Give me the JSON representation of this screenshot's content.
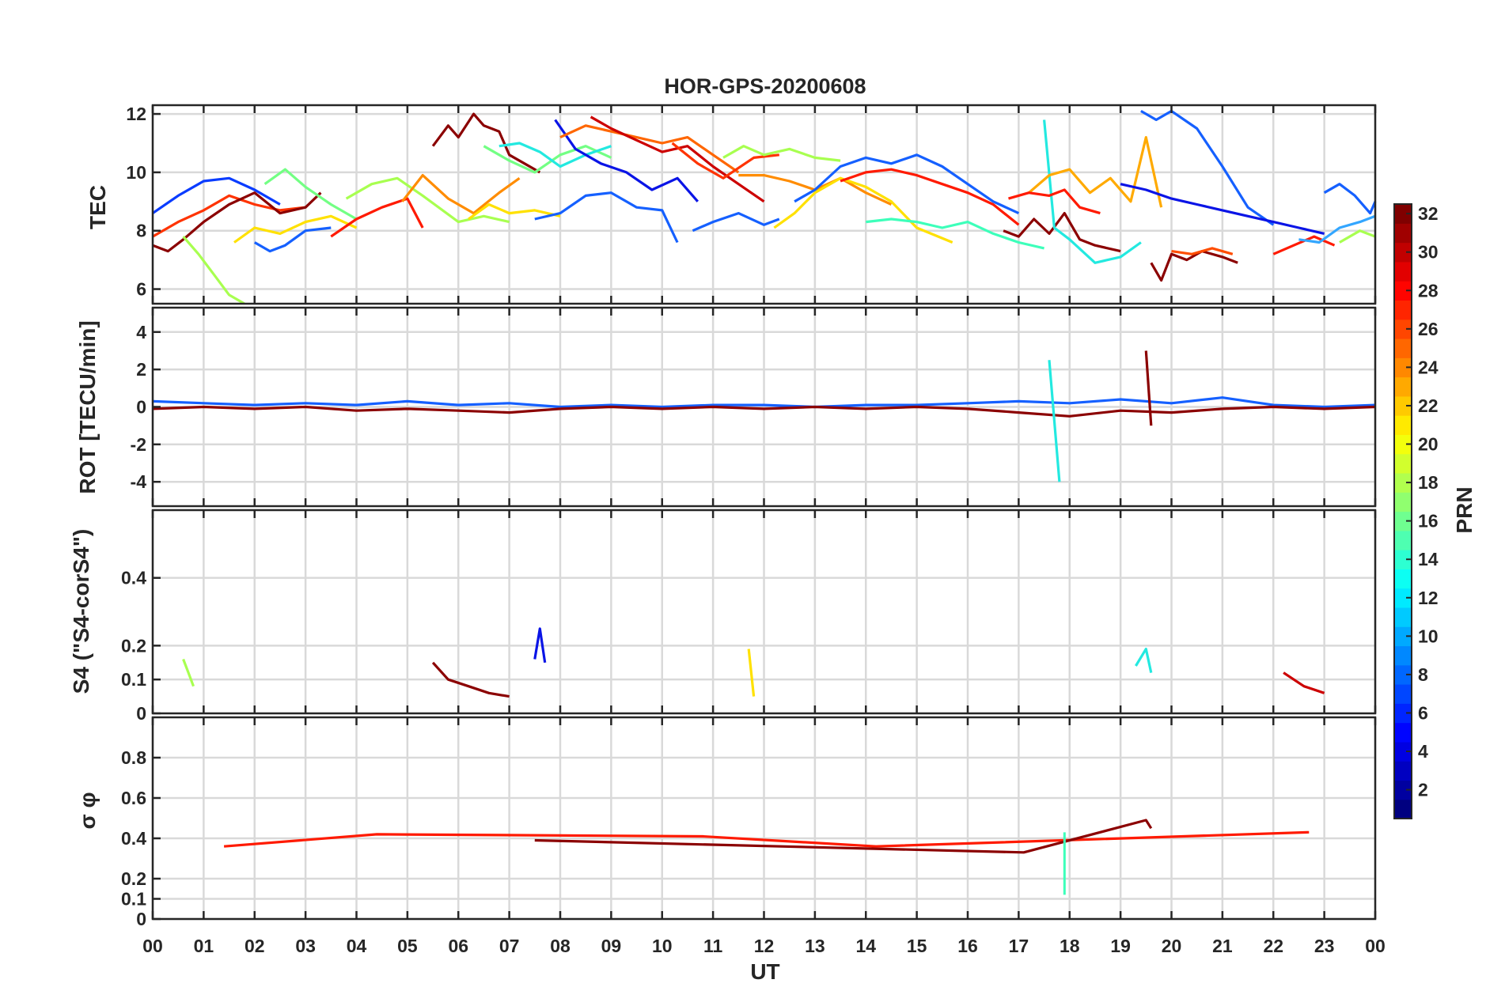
{
  "figure": {
    "title": "HOR-GPS-20200608",
    "xlabel": "UT",
    "x_ticks": [
      "00",
      "01",
      "02",
      "03",
      "04",
      "05",
      "06",
      "07",
      "08",
      "09",
      "10",
      "11",
      "12",
      "13",
      "14",
      "15",
      "16",
      "17",
      "18",
      "19",
      "20",
      "21",
      "22",
      "23",
      "00"
    ]
  },
  "colorbar": {
    "label": "PRN",
    "range": [
      1,
      32
    ],
    "ticks": [
      2,
      4,
      6,
      8,
      10,
      12,
      14,
      16,
      18,
      20,
      22,
      24,
      26,
      28,
      30,
      32
    ],
    "colormap": "jet"
  },
  "chart_data": [
    {
      "type": "line",
      "panel": "tec",
      "ylabel": "TEC",
      "ylim": [
        5.5,
        12.3
      ],
      "y_ticks": [
        6,
        8,
        10,
        12
      ],
      "xlim": [
        0,
        24
      ],
      "grid": true,
      "series": [
        {
          "color": "#0a3cff",
          "x": [
            0,
            0.5,
            1.0,
            1.5,
            2.0,
            2.5
          ],
          "y": [
            8.6,
            9.2,
            9.7,
            9.8,
            9.4,
            8.9
          ]
        },
        {
          "color": "#ff3300",
          "x": [
            0,
            0.5,
            1.0,
            1.5,
            2.0,
            2.5,
            3.0
          ],
          "y": [
            7.8,
            8.3,
            8.7,
            9.2,
            8.9,
            8.7,
            8.8
          ]
        },
        {
          "color": "#8b0000",
          "x": [
            0,
            0.3,
            0.6,
            1.0,
            1.5,
            2.0,
            2.5,
            3.0,
            3.3
          ],
          "y": [
            7.5,
            7.3,
            7.7,
            8.3,
            8.9,
            9.3,
            8.6,
            8.8,
            9.3
          ]
        },
        {
          "color": "#a8ff50",
          "x": [
            0.6,
            0.9,
            1.2,
            1.5,
            1.8
          ],
          "y": [
            7.8,
            7.2,
            6.5,
            5.8,
            5.5
          ]
        },
        {
          "color": "#1560ff",
          "x": [
            2.0,
            2.3,
            2.6,
            3.0,
            3.5
          ],
          "y": [
            7.6,
            7.3,
            7.5,
            8.0,
            8.1
          ]
        },
        {
          "color": "#ffe100",
          "x": [
            1.6,
            2.0,
            2.5,
            3.0,
            3.5,
            4.0
          ],
          "y": [
            7.6,
            8.1,
            7.9,
            8.3,
            8.5,
            8.1
          ]
        },
        {
          "color": "#73ff84",
          "x": [
            2.2,
            2.6,
            3.0,
            3.5,
            4.0
          ],
          "y": [
            9.6,
            10.1,
            9.5,
            8.9,
            8.4
          ]
        },
        {
          "color": "#ff1a00",
          "x": [
            3.5,
            4.0,
            4.5,
            5.0,
            5.3
          ],
          "y": [
            7.8,
            8.4,
            8.8,
            9.1,
            8.1
          ]
        },
        {
          "color": "#a8ff50",
          "x": [
            3.8,
            4.3,
            4.8,
            5.3,
            6.0,
            6.5,
            7.0
          ],
          "y": [
            9.1,
            9.6,
            9.8,
            9.2,
            8.3,
            8.5,
            8.3
          ]
        },
        {
          "color": "#ff8c00",
          "x": [
            4.9,
            5.3,
            5.8,
            6.3,
            6.8,
            7.2
          ],
          "y": [
            9.0,
            9.9,
            9.1,
            8.6,
            9.3,
            9.8
          ]
        },
        {
          "color": "#8b0000",
          "x": [
            5.5,
            5.8,
            6.0,
            6.3,
            6.5,
            6.8,
            7.0,
            7.3,
            7.6
          ],
          "y": [
            10.9,
            11.6,
            11.2,
            12.0,
            11.6,
            11.4,
            10.6,
            10.3,
            10.0
          ]
        },
        {
          "color": "#ffe100",
          "x": [
            6.2,
            6.6,
            7.0,
            7.5,
            8.0
          ],
          "y": [
            8.4,
            8.9,
            8.6,
            8.7,
            8.5
          ]
        },
        {
          "color": "#73ff84",
          "x": [
            6.5,
            7.0,
            7.5,
            8.0,
            8.5,
            9.0
          ],
          "y": [
            10.9,
            10.4,
            10.0,
            10.6,
            10.9,
            10.5
          ]
        },
        {
          "color": "#23e9e0",
          "x": [
            6.8,
            7.2,
            7.6,
            8.0,
            8.5,
            9.0
          ],
          "y": [
            10.9,
            11.0,
            10.7,
            10.2,
            10.6,
            10.9
          ]
        },
        {
          "color": "#1560ff",
          "x": [
            7.5,
            8.0,
            8.5,
            9.0,
            9.5,
            10.0,
            10.3
          ],
          "y": [
            8.4,
            8.6,
            9.2,
            9.3,
            8.8,
            8.7,
            7.6
          ]
        },
        {
          "color": "#0a14e6",
          "x": [
            7.9,
            8.3,
            8.8,
            9.3,
            9.8,
            10.3,
            10.7
          ],
          "y": [
            11.8,
            10.8,
            10.3,
            10.0,
            9.4,
            9.8,
            9.0
          ]
        },
        {
          "color": "#ff6600",
          "x": [
            8.0,
            8.5,
            9.0,
            9.5,
            10.0,
            10.5,
            11.0,
            11.5
          ],
          "y": [
            11.2,
            11.6,
            11.4,
            11.2,
            11.0,
            11.2,
            10.6,
            10.0
          ]
        },
        {
          "color": "#cc0000",
          "x": [
            8.6,
            9.0,
            9.5,
            10.0,
            10.5,
            11.0,
            11.5,
            12.0
          ],
          "y": [
            11.9,
            11.5,
            11.1,
            10.7,
            10.9,
            10.2,
            9.6,
            9.0
          ]
        },
        {
          "color": "#ff3300",
          "x": [
            10.2,
            10.7,
            11.2,
            11.8,
            12.3
          ],
          "y": [
            11.0,
            10.3,
            9.8,
            10.5,
            10.6
          ]
        },
        {
          "color": "#1560ff",
          "x": [
            10.6,
            11.0,
            11.5,
            12.0,
            12.3
          ],
          "y": [
            8.0,
            8.3,
            8.6,
            8.2,
            8.4
          ]
        },
        {
          "color": "#a8ff50",
          "x": [
            11.2,
            11.6,
            12.0,
            12.5,
            13.0,
            13.5
          ],
          "y": [
            10.5,
            10.9,
            10.6,
            10.8,
            10.5,
            10.4
          ]
        },
        {
          "color": "#ff8c00",
          "x": [
            11.5,
            12.0,
            12.5,
            13.0,
            13.5,
            14.0,
            14.5
          ],
          "y": [
            9.9,
            9.9,
            9.7,
            9.4,
            9.8,
            9.3,
            8.9
          ]
        },
        {
          "color": "#ffe100",
          "x": [
            12.2,
            12.6,
            13.0,
            13.5,
            14.0,
            14.5,
            15.0,
            15.7
          ],
          "y": [
            8.1,
            8.6,
            9.3,
            9.8,
            9.5,
            9.0,
            8.1,
            7.6
          ]
        },
        {
          "color": "#1560ff",
          "x": [
            12.6,
            13.0,
            13.5,
            14.0,
            14.5,
            15.0,
            15.5,
            16.0,
            16.5,
            17.0
          ],
          "y": [
            9.0,
            9.4,
            10.2,
            10.5,
            10.3,
            10.6,
            10.2,
            9.6,
            9.0,
            8.6
          ]
        },
        {
          "color": "#ff1a00",
          "x": [
            13.5,
            14.0,
            14.5,
            15.0,
            15.5,
            16.0,
            16.5,
            17.0
          ],
          "y": [
            9.7,
            10.0,
            10.1,
            9.9,
            9.6,
            9.3,
            8.9,
            8.2
          ]
        },
        {
          "color": "#3dffba",
          "x": [
            14.0,
            14.5,
            15.0,
            15.5,
            16.0,
            16.5,
            17.0,
            17.5
          ],
          "y": [
            8.3,
            8.4,
            8.3,
            8.1,
            8.3,
            7.9,
            7.6,
            7.4
          ]
        },
        {
          "color": "#8b0000",
          "x": [
            16.7,
            17.0,
            17.3,
            17.6,
            17.9,
            18.2,
            18.5,
            19.0
          ],
          "y": [
            8.0,
            7.8,
            8.4,
            7.9,
            8.6,
            7.7,
            7.5,
            7.3
          ]
        },
        {
          "color": "#23e9e0",
          "x": [
            17.5,
            17.7,
            18.0,
            18.5,
            19.0,
            19.4
          ],
          "y": [
            11.8,
            8.1,
            7.7,
            6.9,
            7.1,
            7.6
          ]
        },
        {
          "color": "#ffaa00",
          "x": [
            17.2,
            17.6,
            18.0,
            18.4,
            18.8,
            19.2,
            19.5,
            19.8
          ],
          "y": [
            9.3,
            9.9,
            10.1,
            9.3,
            9.8,
            9.0,
            11.2,
            8.8
          ]
        },
        {
          "color": "#ff1a00",
          "x": [
            16.8,
            17.2,
            17.6,
            17.9,
            18.2,
            18.6
          ],
          "y": [
            9.1,
            9.3,
            9.2,
            9.4,
            8.8,
            8.6
          ]
        },
        {
          "color": "#1560ff",
          "x": [
            19.4,
            19.7,
            20.0,
            20.5,
            21.0,
            21.5,
            22.0
          ],
          "y": [
            12.1,
            11.8,
            12.1,
            11.5,
            10.2,
            8.8,
            8.2
          ]
        },
        {
          "color": "#0a14e6",
          "x": [
            19.0,
            19.5,
            20.0,
            20.5,
            21.0,
            21.5,
            22.0,
            22.5,
            23.0
          ],
          "y": [
            9.6,
            9.4,
            9.1,
            8.9,
            8.7,
            8.5,
            8.3,
            8.1,
            7.9
          ]
        },
        {
          "color": "#8b0000",
          "x": [
            19.6,
            19.8,
            20.0,
            20.3,
            20.6,
            21.0,
            21.3
          ],
          "y": [
            6.9,
            6.3,
            7.2,
            7.0,
            7.3,
            7.1,
            6.9
          ]
        },
        {
          "color": "#ff4d00",
          "x": [
            20.0,
            20.4,
            20.8,
            21.2
          ],
          "y": [
            7.3,
            7.2,
            7.4,
            7.2
          ]
        },
        {
          "color": "#ff1a00",
          "x": [
            22.0,
            22.4,
            22.8,
            23.2
          ],
          "y": [
            7.2,
            7.5,
            7.8,
            7.5
          ]
        },
        {
          "color": "#1560ff",
          "x": [
            23.0,
            23.3,
            23.6,
            23.9,
            24.0
          ],
          "y": [
            9.3,
            9.6,
            9.2,
            8.6,
            9.0
          ]
        },
        {
          "color": "#33a6ff",
          "x": [
            22.5,
            22.9,
            23.3,
            23.7,
            24.0
          ],
          "y": [
            7.7,
            7.6,
            8.1,
            8.3,
            8.5
          ]
        },
        {
          "color": "#a8ff50",
          "x": [
            23.3,
            23.7,
            24.0
          ],
          "y": [
            7.6,
            8.0,
            7.8
          ]
        }
      ]
    },
    {
      "type": "line",
      "panel": "rot",
      "ylabel": "ROT [TECU/min]",
      "ylim": [
        -5.3,
        5.3
      ],
      "y_ticks": [
        -4,
        -2,
        0,
        2,
        4
      ],
      "xlim": [
        0,
        24
      ],
      "grid": true,
      "series": [
        {
          "color": "#1560ff",
          "x": [
            0,
            1,
            2,
            3,
            4,
            5,
            6,
            7,
            8,
            9,
            10,
            11,
            12,
            13,
            14,
            15,
            16,
            17,
            18,
            19,
            20,
            21,
            22,
            23,
            24
          ],
          "y": [
            0.3,
            0.2,
            0.1,
            0.2,
            0.1,
            0.3,
            0.1,
            0.2,
            0.0,
            0.1,
            0.0,
            0.1,
            0.1,
            0.0,
            0.1,
            0.1,
            0.2,
            0.3,
            0.2,
            0.4,
            0.2,
            0.5,
            0.1,
            0.0,
            0.1
          ]
        },
        {
          "color": "#8b0000",
          "x": [
            0,
            1,
            2,
            3,
            4,
            5,
            6,
            7,
            8,
            9,
            10,
            11,
            12,
            13,
            14,
            15,
            16,
            17,
            18,
            19,
            20,
            21,
            22,
            23,
            24
          ],
          "y": [
            -0.1,
            0.0,
            -0.1,
            0.0,
            -0.2,
            -0.1,
            -0.2,
            -0.3,
            -0.1,
            0.0,
            -0.1,
            0.0,
            -0.1,
            0.0,
            -0.1,
            0.0,
            -0.1,
            -0.3,
            -0.5,
            -0.2,
            -0.3,
            -0.1,
            0.0,
            -0.1,
            0.0
          ]
        },
        {
          "color": "#23e9e0",
          "x": [
            17.6,
            17.8
          ],
          "y": [
            2.5,
            -4.0
          ]
        },
        {
          "color": "#8b0000",
          "x": [
            19.5,
            19.6
          ],
          "y": [
            3.0,
            -1.0
          ]
        }
      ]
    },
    {
      "type": "line",
      "panel": "s4",
      "ylabel": "S4 (\"S4-corS4\")",
      "ylim": [
        0,
        0.6
      ],
      "y_ticks": [
        0,
        0.1,
        0.2,
        0.4
      ],
      "xlim": [
        0,
        24
      ],
      "grid": true,
      "series": [
        {
          "color": "#a8ff50",
          "x": [
            0.6,
            0.7,
            0.8
          ],
          "y": [
            0.16,
            0.12,
            0.08
          ]
        },
        {
          "color": "#8b0000",
          "x": [
            5.5,
            5.8,
            6.2,
            6.6,
            7.0
          ],
          "y": [
            0.15,
            0.1,
            0.08,
            0.06,
            0.05
          ]
        },
        {
          "color": "#0a14e6",
          "x": [
            7.5,
            7.6,
            7.7
          ],
          "y": [
            0.16,
            0.25,
            0.15
          ]
        },
        {
          "color": "#ffe100",
          "x": [
            11.7,
            11.8
          ],
          "y": [
            0.19,
            0.05
          ]
        },
        {
          "color": "#23e9e0",
          "x": [
            19.3,
            19.5,
            19.6
          ],
          "y": [
            0.14,
            0.19,
            0.12
          ]
        },
        {
          "color": "#cc0000",
          "x": [
            22.2,
            22.6,
            23.0
          ],
          "y": [
            0.12,
            0.08,
            0.06
          ]
        }
      ]
    },
    {
      "type": "line",
      "panel": "sigma",
      "ylabel": "σ φ",
      "ylim": [
        0,
        1.0
      ],
      "y_ticks": [
        0,
        0.1,
        0.2,
        0.4,
        0.6,
        0.8
      ],
      "xlim": [
        0,
        24
      ],
      "grid": true,
      "series": [
        {
          "color": "#ff1a00",
          "x": [
            1.4,
            4.4,
            10.8,
            14.2,
            22.7
          ],
          "y": [
            0.36,
            0.42,
            0.41,
            0.36,
            0.43
          ]
        },
        {
          "color": "#8b0000",
          "x": [
            7.5,
            17.1,
            19.5,
            19.6
          ],
          "y": [
            0.39,
            0.33,
            0.49,
            0.45
          ]
        },
        {
          "color": "#3dffba",
          "x": [
            17.9
          ],
          "y": [
            0.43
          ]
        }
      ]
    }
  ]
}
